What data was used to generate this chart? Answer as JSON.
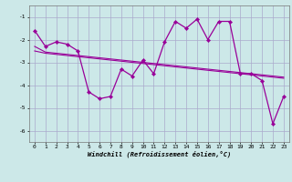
{
  "x": [
    0,
    1,
    2,
    3,
    4,
    5,
    6,
    7,
    8,
    9,
    10,
    11,
    12,
    13,
    14,
    15,
    16,
    17,
    18,
    19,
    20,
    21,
    22,
    23
  ],
  "y_main": [
    -1.6,
    -2.3,
    -2.1,
    -2.2,
    -2.5,
    -4.3,
    -4.6,
    -4.5,
    -3.3,
    -3.6,
    -2.9,
    -3.5,
    -2.1,
    -1.2,
    -1.5,
    -1.1,
    -2.0,
    -1.2,
    -1.2,
    -3.5,
    -3.5,
    -3.8,
    -5.7,
    -4.5
  ],
  "y_trend1": [
    -2.3,
    -2.55,
    -2.6,
    -2.65,
    -2.7,
    -2.75,
    -2.8,
    -2.85,
    -2.9,
    -2.95,
    -3.0,
    -3.05,
    -3.1,
    -3.15,
    -3.2,
    -3.25,
    -3.3,
    -3.35,
    -3.4,
    -3.45,
    -3.5,
    -3.55,
    -3.6,
    -3.65
  ],
  "y_trend2": [
    -2.5,
    -2.6,
    -2.65,
    -2.7,
    -2.75,
    -2.8,
    -2.85,
    -2.9,
    -2.95,
    -3.0,
    -3.05,
    -3.1,
    -3.15,
    -3.2,
    -3.25,
    -3.3,
    -3.35,
    -3.4,
    -3.45,
    -3.5,
    -3.55,
    -3.6,
    -3.65,
    -3.7
  ],
  "line_color": "#990099",
  "bg_color": "#cce8e8",
  "grid_color": "#aaaacc",
  "xlabel": "Windchill (Refroidissement éolien,°C)",
  "ylim": [
    -6.5,
    -0.5
  ],
  "xlim": [
    -0.5,
    23.5
  ],
  "yticks": [
    -6,
    -5,
    -4,
    -3,
    -2,
    -1
  ],
  "xticks": [
    0,
    1,
    2,
    3,
    4,
    5,
    6,
    7,
    8,
    9,
    10,
    11,
    12,
    13,
    14,
    15,
    16,
    17,
    18,
    19,
    20,
    21,
    22,
    23
  ]
}
